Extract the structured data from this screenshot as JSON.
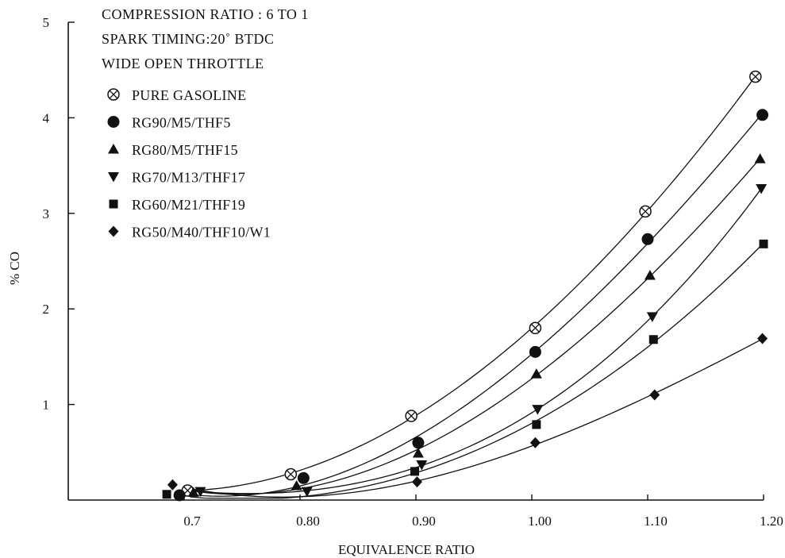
{
  "chart_data": {
    "type": "scatter",
    "xlabel": "EQUIVALENCE RATIO",
    "ylabel": "% CO",
    "xlim": [
      0.6,
      1.2
    ],
    "ylim": [
      0,
      5
    ],
    "x_ticks": [
      {
        "value": 0.7,
        "label": "0.7"
      },
      {
        "value": 0.8,
        "label": "0.80"
      },
      {
        "value": 0.9,
        "label": "0.90"
      },
      {
        "value": 1.0,
        "label": "1.00"
      },
      {
        "value": 1.1,
        "label": "1.10"
      },
      {
        "value": 1.2,
        "label": "1.20"
      }
    ],
    "y_ticks": [
      {
        "value": 1,
        "label": "1"
      },
      {
        "value": 2,
        "label": "2"
      },
      {
        "value": 3,
        "label": "3"
      },
      {
        "value": 4,
        "label": "4"
      },
      {
        "value": 5,
        "label": "5"
      }
    ],
    "annotations": [
      "COMPRESSION RATIO : 6 TO 1",
      "SPARK TIMING:20˚ BTDC",
      "WIDE OPEN THROTTLE"
    ],
    "legend_position": "top-left",
    "grid": false,
    "series": [
      {
        "name": "PURE GASOLINE",
        "marker": "circle-cross",
        "points": [
          [
            0.703,
            0.1
          ],
          [
            0.792,
            0.27
          ],
          [
            0.896,
            0.88
          ],
          [
            1.003,
            1.8
          ],
          [
            1.098,
            3.02
          ],
          [
            1.193,
            4.43
          ]
        ]
      },
      {
        "name": "RG90/M5/THF5",
        "marker": "circle",
        "points": [
          [
            0.696,
            0.05
          ],
          [
            0.803,
            0.23
          ],
          [
            0.902,
            0.6
          ],
          [
            1.003,
            1.55
          ],
          [
            1.1,
            2.73
          ],
          [
            1.199,
            4.03
          ]
        ]
      },
      {
        "name": "RG80/M5/THF15",
        "marker": "triangle-up",
        "points": [
          [
            0.708,
            0.08
          ],
          [
            0.797,
            0.15
          ],
          [
            0.902,
            0.49
          ],
          [
            1.004,
            1.32
          ],
          [
            1.102,
            2.35
          ],
          [
            1.197,
            3.57
          ]
        ]
      },
      {
        "name": "RG70/M13/THF17",
        "marker": "triangle-down",
        "points": [
          [
            0.714,
            0.09
          ],
          [
            0.806,
            0.09
          ],
          [
            0.905,
            0.37
          ],
          [
            1.005,
            0.95
          ],
          [
            1.104,
            1.92
          ],
          [
            1.198,
            3.26
          ]
        ]
      },
      {
        "name": "RG60/M21/THF19",
        "marker": "square",
        "points": [
          [
            0.685,
            0.06
          ],
          [
            0.899,
            0.3
          ],
          [
            1.004,
            0.79
          ],
          [
            1.105,
            1.68
          ],
          [
            1.2,
            2.68
          ]
        ]
      },
      {
        "name": "RG50/M40/THF10/W1",
        "marker": "diamond",
        "points": [
          [
            0.69,
            0.16
          ],
          [
            0.901,
            0.19
          ],
          [
            1.003,
            0.6
          ],
          [
            1.106,
            1.1
          ],
          [
            1.199,
            1.69
          ]
        ]
      }
    ]
  }
}
